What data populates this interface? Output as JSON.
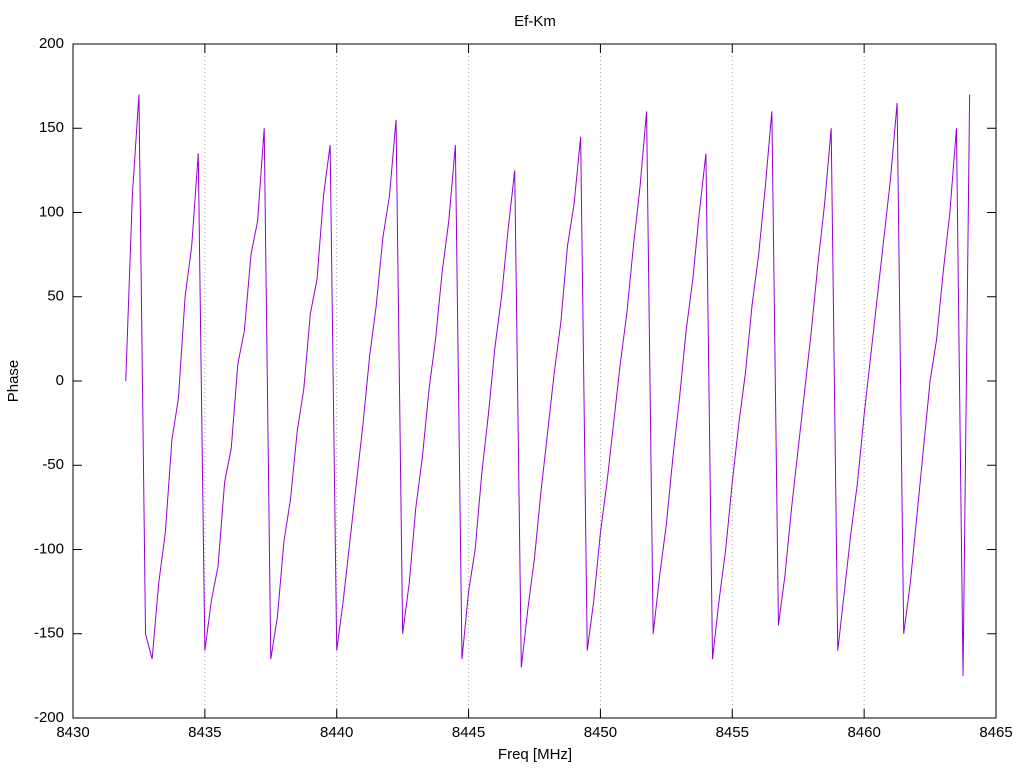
{
  "chart_data": {
    "type": "line",
    "title": "Ef-Km",
    "xlabel": "Freq [MHz]",
    "ylabel": "Phase",
    "xlim": [
      8430,
      8465
    ],
    "xticks": [
      8430,
      8435,
      8440,
      8445,
      8450,
      8455,
      8460,
      8465
    ],
    "ylim": [
      -200,
      200
    ],
    "yticks": [
      -200,
      -150,
      -100,
      -50,
      0,
      50,
      100,
      150,
      200
    ],
    "grid": "x",
    "x": [
      8432.0,
      8432.25,
      8432.5,
      8432.75,
      8433.0,
      8433.25,
      8433.5,
      8433.75,
      8434.0,
      8434.25,
      8434.5,
      8434.75,
      8435.0,
      8435.25,
      8435.5,
      8435.75,
      8436.0,
      8436.25,
      8436.5,
      8436.75,
      8437.0,
      8437.25,
      8437.5,
      8437.75,
      8438.0,
      8438.25,
      8438.5,
      8438.75,
      8439.0,
      8439.25,
      8439.5,
      8439.75,
      8440.0,
      8440.25,
      8440.5,
      8440.75,
      8441.0,
      8441.25,
      8441.5,
      8441.75,
      8442.0,
      8442.25,
      8442.5,
      8442.75,
      8443.0,
      8443.25,
      8443.5,
      8443.75,
      8444.0,
      8444.25,
      8444.5,
      8444.75,
      8445.0,
      8445.25,
      8445.5,
      8445.75,
      8446.0,
      8446.25,
      8446.5,
      8446.75,
      8447.0,
      8447.25,
      8447.5,
      8447.75,
      8448.0,
      8448.25,
      8448.5,
      8448.75,
      8449.0,
      8449.25,
      8449.5,
      8449.75,
      8450.0,
      8450.25,
      8450.5,
      8450.75,
      8451.0,
      8451.25,
      8451.5,
      8451.75,
      8452.0,
      8452.25,
      8452.5,
      8452.75,
      8453.0,
      8453.25,
      8453.5,
      8453.75,
      8454.0,
      8454.25,
      8454.5,
      8454.75,
      8455.0,
      8455.25,
      8455.5,
      8455.75,
      8456.0,
      8456.25,
      8456.5,
      8456.75,
      8457.0,
      8457.25,
      8457.5,
      8457.75,
      8458.0,
      8458.25,
      8458.5,
      8458.75,
      8459.0,
      8459.25,
      8459.5,
      8459.75,
      8460.0,
      8460.25,
      8460.5,
      8460.75,
      8461.0,
      8461.25,
      8461.5,
      8461.75,
      8462.0,
      8462.25,
      8462.5,
      8462.75,
      8463.0,
      8463.25,
      8463.5,
      8463.75,
      8464.0
    ],
    "series": [
      {
        "color": "#9400d3",
        "values": [
          0,
          110,
          170,
          -150,
          -165,
          -120,
          -90,
          -35,
          -10,
          50,
          80,
          135,
          -160,
          -130,
          -110,
          -60,
          -40,
          10,
          30,
          75,
          95,
          150,
          -165,
          -140,
          -95,
          -70,
          -30,
          -5,
          40,
          60,
          110,
          140,
          -160,
          -130,
          -95,
          -60,
          -25,
          15,
          45,
          85,
          110,
          155,
          -150,
          -120,
          -75,
          -45,
          -5,
          25,
          65,
          95,
          140,
          -165,
          -125,
          -100,
          -55,
          -20,
          20,
          50,
          90,
          125,
          -170,
          -135,
          -105,
          -65,
          -30,
          5,
          35,
          80,
          105,
          145,
          -160,
          -130,
          -90,
          -60,
          -25,
          10,
          40,
          80,
          115,
          160,
          -150,
          -115,
          -85,
          -45,
          -10,
          30,
          60,
          100,
          135,
          -165,
          -130,
          -100,
          -60,
          -25,
          5,
          45,
          75,
          115,
          160,
          -145,
          -115,
          -75,
          -40,
          -5,
          30,
          70,
          105,
          150,
          -160,
          -125,
          -90,
          -60,
          -20,
          15,
          50,
          85,
          120,
          165,
          -150,
          -120,
          -80,
          -40,
          0,
          25,
          65,
          100,
          150,
          -175,
          170
        ]
      }
    ]
  }
}
